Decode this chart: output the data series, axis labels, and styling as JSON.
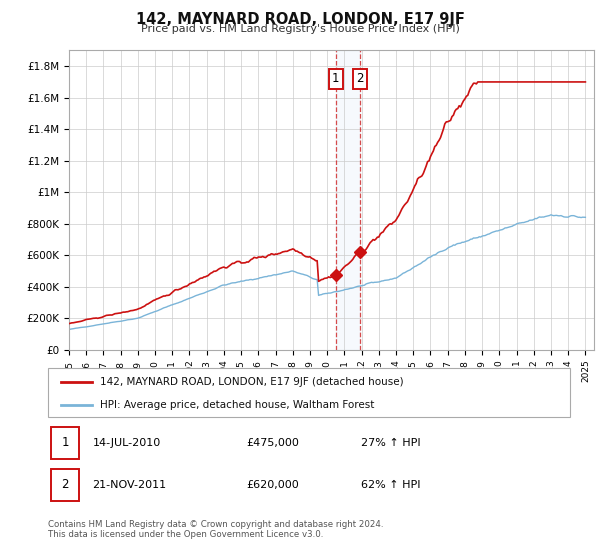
{
  "title": "142, MAYNARD ROAD, LONDON, E17 9JF",
  "subtitle": "Price paid vs. HM Land Registry's House Price Index (HPI)",
  "ylim": [
    0,
    1900000
  ],
  "xlim_start": 1995.0,
  "xlim_end": 2025.5,
  "hpi_color": "#7ab4d8",
  "price_color": "#cc1111",
  "marker_color": "#cc1111",
  "sale1_year": 2010.54,
  "sale1_price": 475000,
  "sale2_year": 2011.9,
  "sale2_price": 620000,
  "legend_label1": "142, MAYNARD ROAD, LONDON, E17 9JF (detached house)",
  "legend_label2": "HPI: Average price, detached house, Waltham Forest",
  "table_row1": [
    "1",
    "14-JUL-2010",
    "£475,000",
    "27% ↑ HPI"
  ],
  "table_row2": [
    "2",
    "21-NOV-2011",
    "£620,000",
    "62% ↑ HPI"
  ],
  "footer": "Contains HM Land Registry data © Crown copyright and database right 2024.\nThis data is licensed under the Open Government Licence v3.0.",
  "bg_color": "#ffffff",
  "grid_color": "#cccccc",
  "yticks": [
    0,
    200000,
    400000,
    600000,
    800000,
    1000000,
    1200000,
    1400000,
    1600000,
    1800000
  ],
  "ylabels": [
    "£0",
    "£200K",
    "£400K",
    "£600K",
    "£800K",
    "£1M",
    "£1.2M",
    "£1.4M",
    "£1.6M",
    "£1.8M"
  ]
}
